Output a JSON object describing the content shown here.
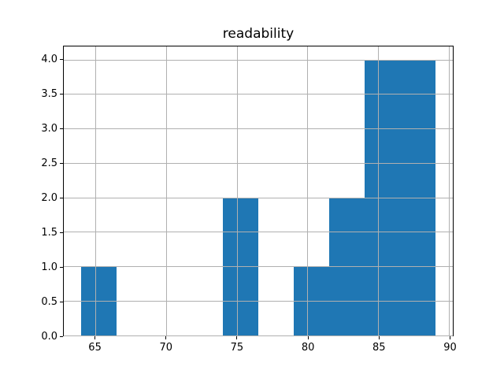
{
  "chart_data": {
    "type": "bar",
    "subtype": "histogram",
    "title": "readability",
    "xlabel": "",
    "ylabel": "",
    "bin_edges": [
      64,
      66.5,
      69,
      71.5,
      74,
      76.5,
      79,
      81.5,
      84,
      86.5,
      89
    ],
    "counts": [
      1,
      0,
      0,
      0,
      2,
      0,
      1,
      2,
      4,
      4
    ],
    "xlim": [
      62.75,
      90.25
    ],
    "ylim": [
      0,
      4.2
    ],
    "xticks": {
      "values": [
        65,
        70,
        75,
        80,
        85,
        90
      ],
      "labels": [
        "65",
        "70",
        "75",
        "80",
        "85",
        "90"
      ]
    },
    "yticks": {
      "values": [
        0.0,
        0.5,
        1.0,
        1.5,
        2.0,
        2.5,
        3.0,
        3.5,
        4.0
      ],
      "labels": [
        "0.0",
        "0.5",
        "1.0",
        "1.5",
        "2.0",
        "2.5",
        "3.0",
        "3.5",
        "4.0"
      ]
    },
    "grid": true,
    "legend_position": "none",
    "bar_color": "#1f77b4",
    "grid_color": "#b0b0b0",
    "spine_color": "#000000",
    "background_color": "#ffffff"
  }
}
